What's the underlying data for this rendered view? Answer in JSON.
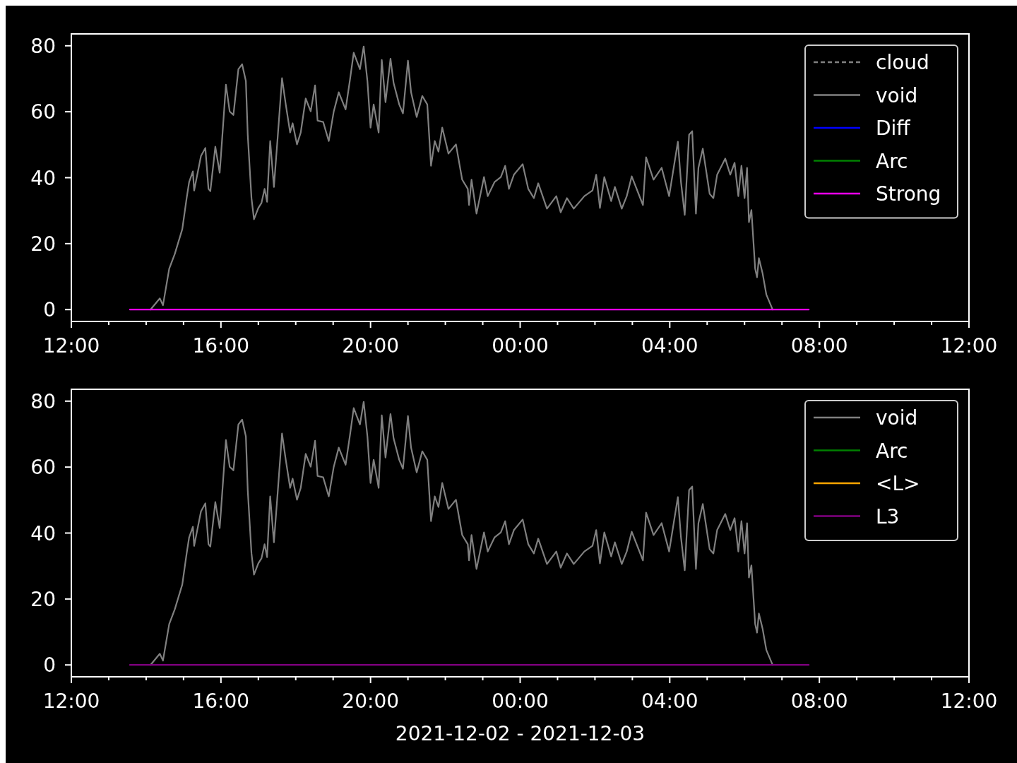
{
  "chart_data": [
    {
      "type": "line",
      "xlim": [
        "2021-12-02T12:00",
        "2021-12-03T12:00"
      ],
      "ylim": [
        -3.6,
        83.6
      ],
      "xticks": [
        {
          "value": "2021-12-02T12:00",
          "label": "12:00"
        },
        {
          "value": "2021-12-02T13:00",
          "label": null
        },
        {
          "value": "2021-12-02T14:00",
          "label": null
        },
        {
          "value": "2021-12-02T15:00",
          "label": null
        },
        {
          "value": "2021-12-02T16:00",
          "label": "16:00"
        },
        {
          "value": "2021-12-02T17:00",
          "label": null
        },
        {
          "value": "2021-12-02T18:00",
          "label": null
        },
        {
          "value": "2021-12-02T19:00",
          "label": null
        },
        {
          "value": "2021-12-02T20:00",
          "label": "20:00"
        },
        {
          "value": "2021-12-02T21:00",
          "label": null
        },
        {
          "value": "2021-12-02T22:00",
          "label": null
        },
        {
          "value": "2021-12-02T23:00",
          "label": null
        },
        {
          "value": "2021-12-03T00:00",
          "label": "00:00"
        },
        {
          "value": "2021-12-03T01:00",
          "label": null
        },
        {
          "value": "2021-12-03T02:00",
          "label": null
        },
        {
          "value": "2021-12-03T03:00",
          "label": null
        },
        {
          "value": "2021-12-03T04:00",
          "label": "04:00"
        },
        {
          "value": "2021-12-03T05:00",
          "label": null
        },
        {
          "value": "2021-12-03T06:00",
          "label": null
        },
        {
          "value": "2021-12-03T07:00",
          "label": null
        },
        {
          "value": "2021-12-03T08:00",
          "label": "08:00"
        },
        {
          "value": "2021-12-03T09:00",
          "label": null
        },
        {
          "value": "2021-12-03T10:00",
          "label": null
        },
        {
          "value": "2021-12-03T11:00",
          "label": null
        },
        {
          "value": "2021-12-03T12:00",
          "label": "12:00"
        }
      ],
      "yticks": [
        0,
        20,
        40,
        60,
        80
      ],
      "legend": "top right",
      "series": [
        {
          "name": "cloud",
          "color": "#808080",
          "line_style": "dashed"
        },
        {
          "name": "void",
          "color": "#808080",
          "line_style": "solid",
          "x": [
            "2021-12-02T14:07",
            "2021-12-02T14:22",
            "2021-12-02T14:27",
            "2021-12-02T14:37",
            "2021-12-02T14:46",
            "2021-12-02T14:58",
            "2021-12-02T15:05",
            "2021-12-02T15:09",
            "2021-12-02T15:15",
            "2021-12-02T15:17",
            "2021-12-02T15:28",
            "2021-12-02T15:35",
            "2021-12-02T15:40",
            "2021-12-02T15:43",
            "2021-12-02T15:51",
            "2021-12-02T15:58",
            "2021-12-02T16:00",
            "2021-12-02T16:08",
            "2021-12-02T16:14",
            "2021-12-02T16:20",
            "2021-12-02T16:28",
            "2021-12-02T16:34",
            "2021-12-02T16:40",
            "2021-12-02T16:43",
            "2021-12-02T16:49",
            "2021-12-02T16:53",
            "2021-12-02T17:00",
            "2021-12-02T17:05",
            "2021-12-02T17:10",
            "2021-12-02T17:14",
            "2021-12-02T17:19",
            "2021-12-02T17:25",
            "2021-12-02T17:31",
            "2021-12-02T17:38",
            "2021-12-02T17:44",
            "2021-12-02T17:51",
            "2021-12-02T17:55",
            "2021-12-02T18:02",
            "2021-12-02T18:08",
            "2021-12-02T18:16",
            "2021-12-02T18:24",
            "2021-12-02T18:31",
            "2021-12-02T18:35",
            "2021-12-02T18:44",
            "2021-12-02T18:53",
            "2021-12-02T19:01",
            "2021-12-02T19:09",
            "2021-12-02T19:20",
            "2021-12-02T19:27",
            "2021-12-02T19:33",
            "2021-12-02T19:43",
            "2021-12-02T19:49",
            "2021-12-02T19:55",
            "2021-12-02T20:00",
            "2021-12-02T20:05",
            "2021-12-02T20:13",
            "2021-12-02T20:18",
            "2021-12-02T20:24",
            "2021-12-02T20:32",
            "2021-12-02T20:37",
            "2021-12-02T20:46",
            "2021-12-02T20:52",
            "2021-12-02T21:00",
            "2021-12-02T21:05",
            "2021-12-02T21:14",
            "2021-12-02T21:23",
            "2021-12-02T21:31",
            "2021-12-02T21:37",
            "2021-12-02T21:43",
            "2021-12-02T21:49",
            "2021-12-02T21:55",
            "2021-12-02T22:05",
            "2021-12-02T22:17",
            "2021-12-02T22:27",
            "2021-12-02T22:36",
            "2021-12-02T22:38",
            "2021-12-02T22:42",
            "2021-12-02T22:50",
            "2021-12-02T23:02",
            "2021-12-02T23:08",
            "2021-12-02T23:19",
            "2021-12-02T23:29",
            "2021-12-02T23:36",
            "2021-12-02T23:42",
            "2021-12-02T23:50",
            "2021-12-03T00:04",
            "2021-12-03T00:13",
            "2021-12-03T00:22",
            "2021-12-03T00:29",
            "2021-12-03T00:43",
            "2021-12-03T00:58",
            "2021-12-03T01:05",
            "2021-12-03T01:15",
            "2021-12-03T01:26",
            "2021-12-03T01:43",
            "2021-12-03T01:56",
            "2021-12-03T02:02",
            "2021-12-03T02:08",
            "2021-12-03T02:15",
            "2021-12-03T02:26",
            "2021-12-03T02:32",
            "2021-12-03T02:43",
            "2021-12-03T02:51",
            "2021-12-03T02:59",
            "2021-12-03T03:17",
            "2021-12-03T03:22",
            "2021-12-03T03:34",
            "2021-12-03T03:47",
            "2021-12-03T03:59",
            "2021-12-03T04:13",
            "2021-12-03T04:18",
            "2021-12-03T04:24",
            "2021-12-03T04:31",
            "2021-12-03T04:36",
            "2021-12-03T04:42",
            "2021-12-03T04:46",
            "2021-12-03T04:53",
            "2021-12-03T05:04",
            "2021-12-03T05:10",
            "2021-12-03T05:16",
            "2021-12-03T05:29",
            "2021-12-03T05:37",
            "2021-12-03T05:44",
            "2021-12-03T05:50",
            "2021-12-03T05:55",
            "2021-12-03T06:00",
            "2021-12-03T06:04",
            "2021-12-03T06:07",
            "2021-12-03T06:11",
            "2021-12-03T06:17",
            "2021-12-03T06:20",
            "2021-12-03T06:23",
            "2021-12-03T06:29",
            "2021-12-03T06:35",
            "2021-12-03T06:45"
          ],
          "values": [
            0,
            3.4,
            1.3,
            12.4,
            16.9,
            24.4,
            33.8,
            38.7,
            41.9,
            36.1,
            46.6,
            49,
            36.6,
            35.9,
            49.4,
            41.5,
            46.6,
            68.2,
            60.1,
            59,
            72.9,
            74.4,
            69.3,
            53,
            33.8,
            27.4,
            30.8,
            32.3,
            36.6,
            32.7,
            51.1,
            37.2,
            52.2,
            70.2,
            62.2,
            53.7,
            56.5,
            50.1,
            53.7,
            64,
            60.1,
            68,
            57.3,
            56.9,
            51.1,
            60.1,
            65.9,
            60.7,
            69.7,
            77.9,
            72.9,
            79.8,
            69.3,
            55.2,
            62.2,
            53.7,
            75.7,
            62.9,
            76.1,
            68.7,
            62.2,
            59.5,
            75.5,
            65.9,
            58.4,
            64.8,
            62.2,
            43.6,
            51.1,
            47.9,
            55.2,
            47.3,
            50.1,
            39.4,
            36.6,
            31.7,
            39.4,
            29.1,
            40.2,
            34.4,
            38.7,
            40.2,
            43.6,
            36.6,
            40.9,
            44.1,
            36.6,
            33.8,
            38.3,
            30.6,
            34.4,
            29.5,
            33.8,
            30.6,
            34.4,
            36.1,
            40.9,
            30.8,
            40.2,
            32.9,
            37.2,
            30.6,
            34.4,
            40.4,
            31.7,
            46.2,
            39.4,
            43,
            34.4,
            50.9,
            38.7,
            28.7,
            53,
            54.1,
            29.1,
            43,
            48.8,
            35.1,
            33.8,
            40.9,
            45.8,
            40.9,
            44.5,
            34.4,
            43.6,
            33.8,
            43,
            26.5,
            30.2,
            12.4,
            9.8,
            15.6,
            10.9,
            4.5,
            0
          ]
        },
        {
          "name": "Diff",
          "color": "#0000ff",
          "line_style": "solid"
        },
        {
          "name": "Arc",
          "color": "#008000",
          "line_style": "solid"
        },
        {
          "name": "Strong",
          "color": "#ff00ff",
          "line_style": "solid",
          "x": [
            "2021-12-02T13:34",
            "2021-12-03T07:43"
          ],
          "values": [
            0,
            0
          ]
        }
      ]
    },
    {
      "type": "line",
      "xlabel": "2021-12-02 - 2021-12-03",
      "xlim": [
        "2021-12-02T12:00",
        "2021-12-03T12:00"
      ],
      "ylim": [
        -3.6,
        83.6
      ],
      "xticks": [
        {
          "value": "2021-12-02T12:00",
          "label": "12:00"
        },
        {
          "value": "2021-12-02T13:00",
          "label": null
        },
        {
          "value": "2021-12-02T14:00",
          "label": null
        },
        {
          "value": "2021-12-02T15:00",
          "label": null
        },
        {
          "value": "2021-12-02T16:00",
          "label": "16:00"
        },
        {
          "value": "2021-12-02T17:00",
          "label": null
        },
        {
          "value": "2021-12-02T18:00",
          "label": null
        },
        {
          "value": "2021-12-02T19:00",
          "label": null
        },
        {
          "value": "2021-12-02T20:00",
          "label": "20:00"
        },
        {
          "value": "2021-12-02T21:00",
          "label": null
        },
        {
          "value": "2021-12-02T22:00",
          "label": null
        },
        {
          "value": "2021-12-02T23:00",
          "label": null
        },
        {
          "value": "2021-12-03T00:00",
          "label": "00:00"
        },
        {
          "value": "2021-12-03T01:00",
          "label": null
        },
        {
          "value": "2021-12-03T02:00",
          "label": null
        },
        {
          "value": "2021-12-03T03:00",
          "label": null
        },
        {
          "value": "2021-12-03T04:00",
          "label": "04:00"
        },
        {
          "value": "2021-12-03T05:00",
          "label": null
        },
        {
          "value": "2021-12-03T06:00",
          "label": null
        },
        {
          "value": "2021-12-03T07:00",
          "label": null
        },
        {
          "value": "2021-12-03T08:00",
          "label": "08:00"
        },
        {
          "value": "2021-12-03T09:00",
          "label": null
        },
        {
          "value": "2021-12-03T10:00",
          "label": null
        },
        {
          "value": "2021-12-03T11:00",
          "label": null
        },
        {
          "value": "2021-12-03T12:00",
          "label": "12:00"
        }
      ],
      "yticks": [
        0,
        20,
        40,
        60,
        80
      ],
      "legend": "top right",
      "series": [
        {
          "name": "void",
          "color": "#808080",
          "line_style": "solid",
          "x": [
            "2021-12-02T14:07",
            "2021-12-02T14:22",
            "2021-12-02T14:27",
            "2021-12-02T14:37",
            "2021-12-02T14:46",
            "2021-12-02T14:58",
            "2021-12-02T15:05",
            "2021-12-02T15:09",
            "2021-12-02T15:15",
            "2021-12-02T15:17",
            "2021-12-02T15:28",
            "2021-12-02T15:35",
            "2021-12-02T15:40",
            "2021-12-02T15:43",
            "2021-12-02T15:51",
            "2021-12-02T15:58",
            "2021-12-02T16:00",
            "2021-12-02T16:08",
            "2021-12-02T16:14",
            "2021-12-02T16:20",
            "2021-12-02T16:28",
            "2021-12-02T16:34",
            "2021-12-02T16:40",
            "2021-12-02T16:43",
            "2021-12-02T16:49",
            "2021-12-02T16:53",
            "2021-12-02T17:00",
            "2021-12-02T17:05",
            "2021-12-02T17:10",
            "2021-12-02T17:14",
            "2021-12-02T17:19",
            "2021-12-02T17:25",
            "2021-12-02T17:31",
            "2021-12-02T17:38",
            "2021-12-02T17:44",
            "2021-12-02T17:51",
            "2021-12-02T17:55",
            "2021-12-02T18:02",
            "2021-12-02T18:08",
            "2021-12-02T18:16",
            "2021-12-02T18:24",
            "2021-12-02T18:31",
            "2021-12-02T18:35",
            "2021-12-02T18:44",
            "2021-12-02T18:53",
            "2021-12-02T19:01",
            "2021-12-02T19:09",
            "2021-12-02T19:20",
            "2021-12-02T19:27",
            "2021-12-02T19:33",
            "2021-12-02T19:43",
            "2021-12-02T19:49",
            "2021-12-02T19:55",
            "2021-12-02T20:00",
            "2021-12-02T20:05",
            "2021-12-02T20:13",
            "2021-12-02T20:18",
            "2021-12-02T20:24",
            "2021-12-02T20:32",
            "2021-12-02T20:37",
            "2021-12-02T20:46",
            "2021-12-02T20:52",
            "2021-12-02T21:00",
            "2021-12-02T21:05",
            "2021-12-02T21:14",
            "2021-12-02T21:23",
            "2021-12-02T21:31",
            "2021-12-02T21:37",
            "2021-12-02T21:43",
            "2021-12-02T21:49",
            "2021-12-02T21:55",
            "2021-12-02T22:05",
            "2021-12-02T22:17",
            "2021-12-02T22:27",
            "2021-12-02T22:36",
            "2021-12-02T22:38",
            "2021-12-02T22:42",
            "2021-12-02T22:50",
            "2021-12-02T23:02",
            "2021-12-02T23:08",
            "2021-12-02T23:19",
            "2021-12-02T23:29",
            "2021-12-02T23:36",
            "2021-12-02T23:42",
            "2021-12-02T23:50",
            "2021-12-03T00:04",
            "2021-12-03T00:13",
            "2021-12-03T00:22",
            "2021-12-03T00:29",
            "2021-12-03T00:43",
            "2021-12-03T00:58",
            "2021-12-03T01:05",
            "2021-12-03T01:15",
            "2021-12-03T01:26",
            "2021-12-03T01:43",
            "2021-12-03T01:56",
            "2021-12-03T02:02",
            "2021-12-03T02:08",
            "2021-12-03T02:15",
            "2021-12-03T02:26",
            "2021-12-03T02:32",
            "2021-12-03T02:43",
            "2021-12-03T02:51",
            "2021-12-03T02:59",
            "2021-12-03T03:17",
            "2021-12-03T03:22",
            "2021-12-03T03:34",
            "2021-12-03T03:47",
            "2021-12-03T03:59",
            "2021-12-03T04:13",
            "2021-12-03T04:18",
            "2021-12-03T04:24",
            "2021-12-03T04:31",
            "2021-12-03T04:36",
            "2021-12-03T04:42",
            "2021-12-03T04:46",
            "2021-12-03T04:53",
            "2021-12-03T05:04",
            "2021-12-03T05:10",
            "2021-12-03T05:16",
            "2021-12-03T05:29",
            "2021-12-03T05:37",
            "2021-12-03T05:44",
            "2021-12-03T05:50",
            "2021-12-03T05:55",
            "2021-12-03T06:00",
            "2021-12-03T06:04",
            "2021-12-03T06:07",
            "2021-12-03T06:11",
            "2021-12-03T06:17",
            "2021-12-03T06:20",
            "2021-12-03T06:23",
            "2021-12-03T06:29",
            "2021-12-03T06:35",
            "2021-12-03T06:45"
          ],
          "values": [
            0,
            3.4,
            1.3,
            12.4,
            16.9,
            24.4,
            33.8,
            38.7,
            41.9,
            36.1,
            46.6,
            49,
            36.6,
            35.9,
            49.4,
            41.5,
            46.6,
            68.2,
            60.1,
            59,
            72.9,
            74.4,
            69.3,
            53,
            33.8,
            27.4,
            30.8,
            32.3,
            36.6,
            32.7,
            51.1,
            37.2,
            52.2,
            70.2,
            62.2,
            53.7,
            56.5,
            50.1,
            53.7,
            64,
            60.1,
            68,
            57.3,
            56.9,
            51.1,
            60.1,
            65.9,
            60.7,
            69.7,
            77.9,
            72.9,
            79.8,
            69.3,
            55.2,
            62.2,
            53.7,
            75.7,
            62.9,
            76.1,
            68.7,
            62.2,
            59.5,
            75.5,
            65.9,
            58.4,
            64.8,
            62.2,
            43.6,
            51.1,
            47.9,
            55.2,
            47.3,
            50.1,
            39.4,
            36.6,
            31.7,
            39.4,
            29.1,
            40.2,
            34.4,
            38.7,
            40.2,
            43.6,
            36.6,
            40.9,
            44.1,
            36.6,
            33.8,
            38.3,
            30.6,
            34.4,
            29.5,
            33.8,
            30.6,
            34.4,
            36.1,
            40.9,
            30.8,
            40.2,
            32.9,
            37.2,
            30.6,
            34.4,
            40.4,
            31.7,
            46.2,
            39.4,
            43,
            34.4,
            50.9,
            38.7,
            28.7,
            53,
            54.1,
            29.1,
            43,
            48.8,
            35.1,
            33.8,
            40.9,
            45.8,
            40.9,
            44.5,
            34.4,
            43.6,
            33.8,
            43,
            26.5,
            30.2,
            12.4,
            9.8,
            15.6,
            10.9,
            4.5,
            0
          ]
        },
        {
          "name": "Arc",
          "color": "#008000",
          "line_style": "solid"
        },
        {
          "name": "<L>",
          "color": "#ffa500",
          "line_style": "solid"
        },
        {
          "name": "L3",
          "color": "#800080",
          "line_style": "solid",
          "x": [
            "2021-12-02T13:34",
            "2021-12-03T07:43"
          ],
          "values": [
            0,
            0
          ]
        }
      ]
    }
  ]
}
